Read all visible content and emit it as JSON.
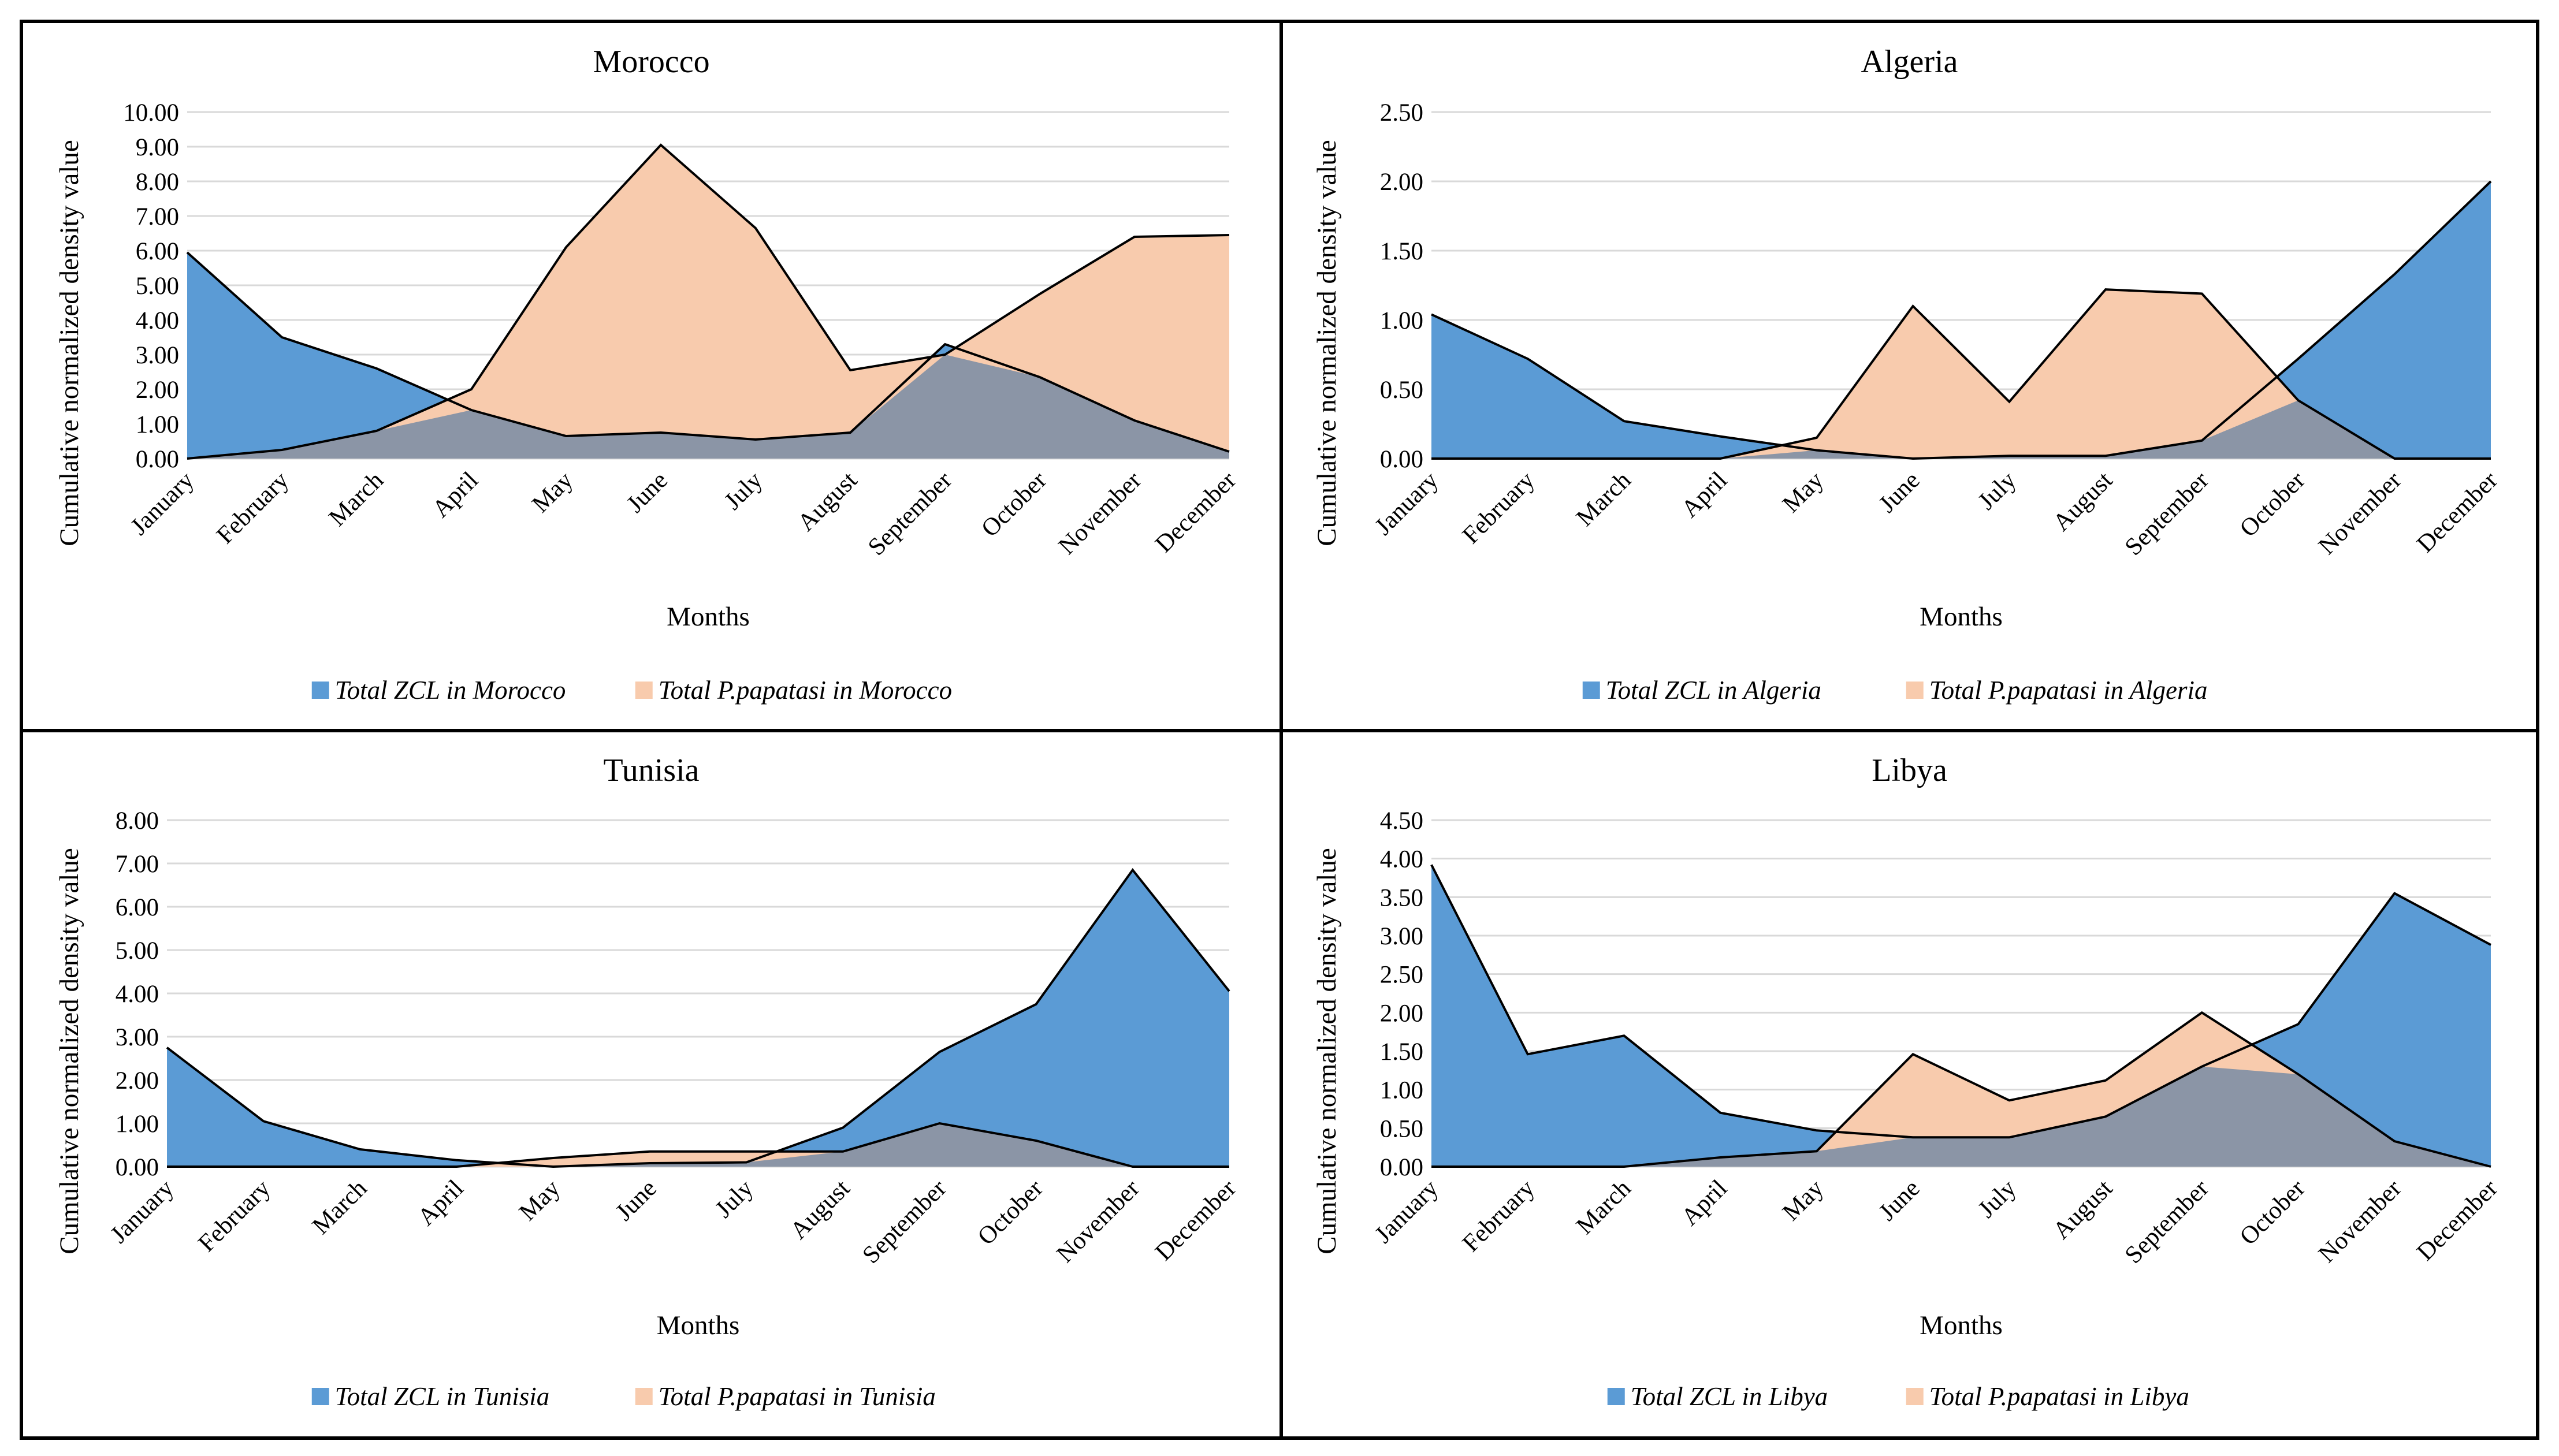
{
  "colors": {
    "zcl_fill": "#5b9bd5",
    "papatasi_fill": "#f8cbad",
    "overlap_fill": "#8b95a6",
    "outline": "#000000",
    "grid": "#d9d9d9"
  },
  "chart_data": [
    {
      "type": "area",
      "title": "Morocco",
      "xlabel": "Months",
      "ylabel": "Cumulative normalized density value",
      "categories": [
        "January",
        "February",
        "March",
        "April",
        "May",
        "June",
        "July",
        "August",
        "September",
        "October",
        "November",
        "December"
      ],
      "ylim": [
        0,
        10
      ],
      "y_ticks": [
        "0.00",
        "1.00",
        "2.00",
        "3.00",
        "4.00",
        "5.00",
        "6.00",
        "7.00",
        "8.00",
        "9.00",
        "10.00"
      ],
      "grid": true,
      "legend_position": "bottom",
      "series": [
        {
          "name": "Total ZCL in Morocco",
          "values": [
            5.95,
            3.5,
            2.6,
            1.4,
            0.65,
            0.75,
            0.55,
            0.75,
            3.3,
            2.35,
            1.1,
            0.2
          ]
        },
        {
          "name": "Total P.papatasi in Morocco",
          "values": [
            0.0,
            0.25,
            0.8,
            2.0,
            6.1,
            9.05,
            6.65,
            2.55,
            3.0,
            4.75,
            6.4,
            6.45
          ]
        }
      ]
    },
    {
      "type": "area",
      "title": "Algeria",
      "xlabel": "Months",
      "ylabel": "Cumulative normalized density value",
      "categories": [
        "January",
        "February",
        "March",
        "April",
        "May",
        "June",
        "July",
        "August",
        "September",
        "October",
        "November",
        "December"
      ],
      "ylim": [
        0,
        2.5
      ],
      "y_ticks": [
        "0.00",
        "0.50",
        "1.00",
        "1.50",
        "2.00",
        "2.50"
      ],
      "grid": true,
      "legend_position": "bottom",
      "series": [
        {
          "name": "Total ZCL in Algeria",
          "values": [
            1.04,
            0.72,
            0.27,
            0.16,
            0.06,
            0.0,
            0.02,
            0.02,
            0.13,
            0.72,
            1.33,
            2.0
          ]
        },
        {
          "name": "Total P.papatasi in Algeria",
          "values": [
            0.0,
            0.0,
            0.0,
            0.0,
            0.15,
            1.1,
            0.41,
            1.22,
            1.19,
            0.42,
            0.0,
            0.0
          ]
        }
      ]
    },
    {
      "type": "area",
      "title": "Tunisia",
      "xlabel": "Months",
      "ylabel": "Cumulative normalized density value",
      "categories": [
        "January",
        "February",
        "March",
        "April",
        "May",
        "June",
        "July",
        "August",
        "September",
        "October",
        "November",
        "December"
      ],
      "ylim": [
        0,
        8
      ],
      "y_ticks": [
        "0.00",
        "1.00",
        "2.00",
        "3.00",
        "4.00",
        "5.00",
        "6.00",
        "7.00",
        "8.00"
      ],
      "grid": true,
      "legend_position": "bottom",
      "series": [
        {
          "name": "Total ZCL in Tunisia",
          "values": [
            2.75,
            1.05,
            0.4,
            0.15,
            0.0,
            0.08,
            0.1,
            0.9,
            2.65,
            3.75,
            6.85,
            4.05
          ]
        },
        {
          "name": "Total P.papatasi in Tunisia",
          "values": [
            0.0,
            0.0,
            0.0,
            0.0,
            0.2,
            0.35,
            0.35,
            0.35,
            1.0,
            0.6,
            0.0,
            0.0
          ]
        }
      ]
    },
    {
      "type": "area",
      "title": "Libya",
      "xlabel": "Months",
      "ylabel": "Cumulative normalized density value",
      "categories": [
        "January",
        "February",
        "March",
        "April",
        "May",
        "June",
        "July",
        "August",
        "September",
        "October",
        "November",
        "December"
      ],
      "ylim": [
        0,
        4.5
      ],
      "y_ticks": [
        "0.00",
        "0.50",
        "1.00",
        "1.50",
        "2.00",
        "2.50",
        "3.00",
        "3.50",
        "4.00",
        "4.50"
      ],
      "grid": true,
      "legend_position": "bottom",
      "series": [
        {
          "name": "Total ZCL in Libya",
          "values": [
            3.92,
            1.46,
            1.7,
            0.7,
            0.47,
            0.38,
            0.38,
            0.65,
            1.3,
            1.85,
            3.55,
            2.88
          ]
        },
        {
          "name": "Total P.papatasi in Libya",
          "values": [
            0.0,
            0.0,
            0.0,
            0.12,
            0.2,
            1.46,
            0.86,
            1.12,
            2.0,
            1.2,
            0.33,
            0.0
          ]
        }
      ]
    }
  ]
}
